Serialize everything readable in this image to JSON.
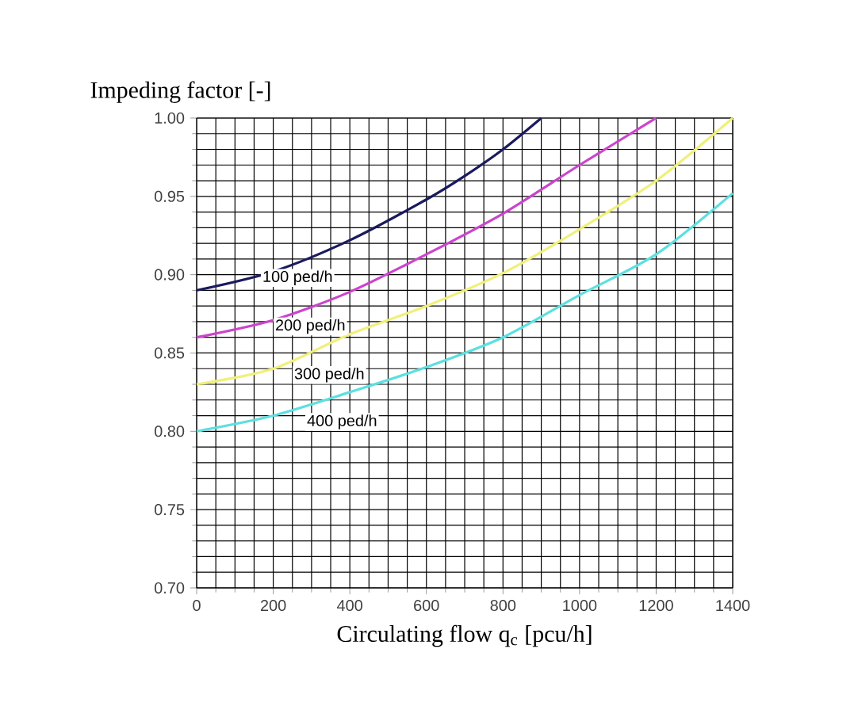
{
  "chart_data": {
    "type": "line",
    "ylabel": "Impeding factor [-]",
    "xlabel": "Circulating flow q$_{c}$ [pcu/h]",
    "xlim": [
      0,
      1400
    ],
    "ylim": [
      0.7,
      1.0
    ],
    "xticks": [
      0,
      200,
      400,
      600,
      800,
      1000,
      1200,
      1400
    ],
    "yticks": [
      {
        "value": 0.7,
        "label": "0.70"
      },
      {
        "value": 0.75,
        "label": "0.75"
      },
      {
        "value": 0.8,
        "label": "0.80"
      },
      {
        "value": 0.85,
        "label": "0.85"
      },
      {
        "value": 0.9,
        "label": "0.90"
      },
      {
        "value": 0.95,
        "label": "0.95"
      },
      {
        "value": 1.0,
        "label": "1.00"
      }
    ],
    "grid": true,
    "marker": "none",
    "line_style": "solid",
    "series": [
      {
        "name": "100 ped/h",
        "color": "#1a1a5e",
        "x": [
          0,
          200,
          400,
          600,
          700,
          800,
          900
        ],
        "values": [
          0.89,
          0.902,
          0.922,
          0.948,
          0.963,
          0.98,
          1.0
        ]
      },
      {
        "name": "200 ped/h",
        "color": "#cc44cc",
        "x": [
          0,
          200,
          400,
          600,
          800,
          1000,
          1200
        ],
        "values": [
          0.86,
          0.871,
          0.889,
          0.913,
          0.939,
          0.97,
          1.0
        ]
      },
      {
        "name": "300 ped/h",
        "color": "#f0f07a",
        "x": [
          0,
          200,
          400,
          600,
          800,
          1000,
          1200,
          1400
        ],
        "values": [
          0.83,
          0.84,
          0.862,
          0.88,
          0.901,
          0.929,
          0.96,
          1.0
        ]
      },
      {
        "name": "400 ped/h",
        "color": "#5ce0e0",
        "x": [
          0,
          200,
          400,
          600,
          800,
          1000,
          1200,
          1400
        ],
        "values": [
          0.8,
          0.81,
          0.825,
          0.841,
          0.86,
          0.887,
          0.913,
          0.952
        ]
      }
    ]
  }
}
